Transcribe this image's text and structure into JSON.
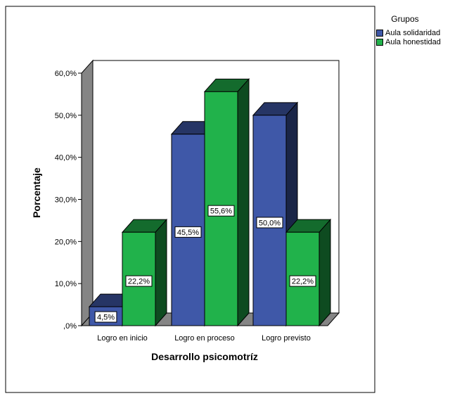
{
  "chart_data": {
    "type": "bar",
    "title": "",
    "xlabel": "Desarrollo psicomotríz",
    "ylabel": "Porcentaje",
    "categories": [
      "Logro en inicio",
      "Logro en proceso",
      "Logro previsto"
    ],
    "series": [
      {
        "name": "Aula solidaridad",
        "values": [
          4.5,
          45.5,
          50.0
        ],
        "labels": [
          "4,5%",
          "45,5%",
          "50,0%"
        ],
        "color": "#3f58a8"
      },
      {
        "name": "Aula honestidad",
        "values": [
          22.2,
          55.6,
          22.2
        ],
        "labels": [
          "22,2%",
          "55,6%",
          "22,2%"
        ],
        "color": "#21b24b"
      }
    ],
    "yticks": [
      0,
      10,
      20,
      30,
      40,
      50,
      60
    ],
    "ytick_labels": [
      ",0%",
      "10,0%",
      "20,0%",
      "30,0%",
      "40,0%",
      "50,0%",
      "60,0%"
    ],
    "ylim": [
      0,
      60
    ],
    "legend": {
      "title": "Grupos",
      "position": "top-right"
    },
    "grid": false,
    "style": "3d"
  }
}
